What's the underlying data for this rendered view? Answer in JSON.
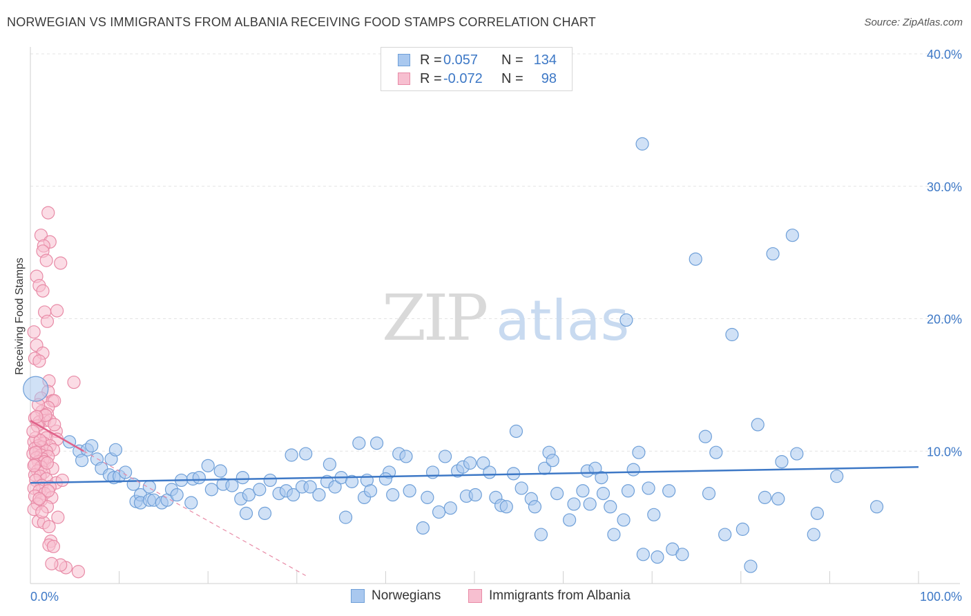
{
  "header": {
    "title": "NORWEGIAN VS IMMIGRANTS FROM ALBANIA RECEIVING FOOD STAMPS CORRELATION CHART",
    "source": "Source: ZipAtlas.com"
  },
  "watermark": {
    "zip": "ZIP",
    "atlas": "atlas"
  },
  "legend": {
    "rows": [
      {
        "r_label": "R =",
        "r_value": "0.057",
        "n_label": "N =",
        "n_value": "134",
        "color": "#a9c8ef",
        "border": "#6e9fd8"
      },
      {
        "r_label": "R =",
        "r_value": "-0.072",
        "n_label": "N =",
        "n_value": "98",
        "color": "#f7bfd0",
        "border": "#e88aa6"
      }
    ]
  },
  "bottom_legend": [
    {
      "label": "Norwegians",
      "color": "#a9c8ef",
      "border": "#6e9fd8"
    },
    {
      "label": "Immigrants from Albania",
      "color": "#f7bfd0",
      "border": "#e88aa6"
    }
  ],
  "chart_data": {
    "type": "scatter",
    "title": "NORWEGIAN VS IMMIGRANTS FROM ALBANIA RECEIVING FOOD STAMPS CORRELATION CHART",
    "ylabel": "Receiving Food Stamps",
    "xlabel": "",
    "xlim": [
      0,
      100
    ],
    "ylim": [
      0,
      40
    ],
    "x_tick_labels": [
      "0.0%",
      "100.0%"
    ],
    "y_ticks": [
      10,
      20,
      30,
      40
    ],
    "y_tick_labels": [
      "10.0%",
      "20.0%",
      "30.0%",
      "40.0%"
    ],
    "grid": true,
    "series": [
      {
        "name": "Norwegians",
        "color": "#6e9fd8",
        "fill": "#a9c8ef",
        "trend": {
          "x": [
            0,
            100
          ],
          "y": [
            7.6,
            8.8
          ]
        },
        "points": [
          [
            0.6,
            14.7
          ],
          [
            4.4,
            10.7
          ],
          [
            5.5,
            10.0
          ],
          [
            6.4,
            10.1
          ],
          [
            6.9,
            10.4
          ],
          [
            7.5,
            9.4
          ],
          [
            5.8,
            9.3
          ],
          [
            9.1,
            9.4
          ],
          [
            9.6,
            10.1
          ],
          [
            8.0,
            8.7
          ],
          [
            8.9,
            8.2
          ],
          [
            9.4,
            8.0
          ],
          [
            10.0,
            8.1
          ],
          [
            10.7,
            8.4
          ],
          [
            11.6,
            7.5
          ],
          [
            11.9,
            6.2
          ],
          [
            12.4,
            6.7
          ],
          [
            13.4,
            7.3
          ],
          [
            12.4,
            6.1
          ],
          [
            13.4,
            6.3
          ],
          [
            13.9,
            6.3
          ],
          [
            14.8,
            6.1
          ],
          [
            15.4,
            6.3
          ],
          [
            15.9,
            7.1
          ],
          [
            16.5,
            6.7
          ],
          [
            17.0,
            7.8
          ],
          [
            18.1,
            6.1
          ],
          [
            18.3,
            7.9
          ],
          [
            19.0,
            8.0
          ],
          [
            20.0,
            8.9
          ],
          [
            20.4,
            7.1
          ],
          [
            21.4,
            8.5
          ],
          [
            21.7,
            7.5
          ],
          [
            22.7,
            7.4
          ],
          [
            23.7,
            6.4
          ],
          [
            24.3,
            5.3
          ],
          [
            24.6,
            6.7
          ],
          [
            25.8,
            7.1
          ],
          [
            26.4,
            5.3
          ],
          [
            27.0,
            7.8
          ],
          [
            28.0,
            6.8
          ],
          [
            28.8,
            7.0
          ],
          [
            29.4,
            9.7
          ],
          [
            29.6,
            6.7
          ],
          [
            30.6,
            7.3
          ],
          [
            31.0,
            9.8
          ],
          [
            31.5,
            7.3
          ],
          [
            32.5,
            6.7
          ],
          [
            33.4,
            7.7
          ],
          [
            33.7,
            9.0
          ],
          [
            34.3,
            7.3
          ],
          [
            35.0,
            8.0
          ],
          [
            35.5,
            5.0
          ],
          [
            36.2,
            7.7
          ],
          [
            37.0,
            10.6
          ],
          [
            37.6,
            6.5
          ],
          [
            37.9,
            7.8
          ],
          [
            38.3,
            7.0
          ],
          [
            39.0,
            10.6
          ],
          [
            40.4,
            8.4
          ],
          [
            40.8,
            6.7
          ],
          [
            41.5,
            9.8
          ],
          [
            42.3,
            9.6
          ],
          [
            42.7,
            7.0
          ],
          [
            44.2,
            4.2
          ],
          [
            44.7,
            6.5
          ],
          [
            45.3,
            8.4
          ],
          [
            46.0,
            5.4
          ],
          [
            46.7,
            9.6
          ],
          [
            47.3,
            5.7
          ],
          [
            48.1,
            8.5
          ],
          [
            48.7,
            8.8
          ],
          [
            49.1,
            6.6
          ],
          [
            49.5,
            9.1
          ],
          [
            50.1,
            6.7
          ],
          [
            51.0,
            9.1
          ],
          [
            51.7,
            8.4
          ],
          [
            52.4,
            6.5
          ],
          [
            53.0,
            5.9
          ],
          [
            53.6,
            5.8
          ],
          [
            54.4,
            8.3
          ],
          [
            54.7,
            11.5
          ],
          [
            55.3,
            7.2
          ],
          [
            56.4,
            6.4
          ],
          [
            56.8,
            5.8
          ],
          [
            57.5,
            3.7
          ],
          [
            57.9,
            8.7
          ],
          [
            58.4,
            9.9
          ],
          [
            58.8,
            9.3
          ],
          [
            59.3,
            6.8
          ],
          [
            60.7,
            4.8
          ],
          [
            61.2,
            6.0
          ],
          [
            62.2,
            7.0
          ],
          [
            62.7,
            8.5
          ],
          [
            63.0,
            6.0
          ],
          [
            63.6,
            8.7
          ],
          [
            64.3,
            8.0
          ],
          [
            64.5,
            6.8
          ],
          [
            65.3,
            5.8
          ],
          [
            65.7,
            3.7
          ],
          [
            66.8,
            4.8
          ],
          [
            67.3,
            7.0
          ],
          [
            67.9,
            8.6
          ],
          [
            68.5,
            9.9
          ],
          [
            68.9,
            33.2
          ],
          [
            67.1,
            19.9
          ],
          [
            69.0,
            2.2
          ],
          [
            69.6,
            7.2
          ],
          [
            70.2,
            5.2
          ],
          [
            70.6,
            2.0
          ],
          [
            71.9,
            7.0
          ],
          [
            72.3,
            2.6
          ],
          [
            73.4,
            2.2
          ],
          [
            74.9,
            24.5
          ],
          [
            76.0,
            11.1
          ],
          [
            76.4,
            6.8
          ],
          [
            77.2,
            9.9
          ],
          [
            78.2,
            3.7
          ],
          [
            79.0,
            18.8
          ],
          [
            80.2,
            4.1
          ],
          [
            81.1,
            1.3
          ],
          [
            81.9,
            12.0
          ],
          [
            82.7,
            6.5
          ],
          [
            83.6,
            24.9
          ],
          [
            84.2,
            6.4
          ],
          [
            85.8,
            26.3
          ],
          [
            86.3,
            9.8
          ],
          [
            88.2,
            3.7
          ],
          [
            88.6,
            5.3
          ],
          [
            90.8,
            8.1
          ],
          [
            95.3,
            5.8
          ],
          [
            84.6,
            9.2
          ],
          [
            40.0,
            7.9
          ],
          [
            23.9,
            8.0
          ]
        ]
      },
      {
        "name": "Immigrants from Albania",
        "color": "#e88aa6",
        "fill": "#f7bfd0",
        "trend": {
          "x": [
            0,
            6
          ],
          "y": [
            12.3,
            10.0
          ]
        },
        "trend_ext": {
          "x": [
            6,
            31
          ],
          "y": [
            10.0,
            0.6
          ]
        },
        "points": [
          [
            2.0,
            28.0
          ],
          [
            1.2,
            26.3
          ],
          [
            2.2,
            25.8
          ],
          [
            1.5,
            25.5
          ],
          [
            1.4,
            25.1
          ],
          [
            3.4,
            24.2
          ],
          [
            1.8,
            24.4
          ],
          [
            0.7,
            23.2
          ],
          [
            1.0,
            22.5
          ],
          [
            1.4,
            22.1
          ],
          [
            1.6,
            20.5
          ],
          [
            3.0,
            20.6
          ],
          [
            1.9,
            19.8
          ],
          [
            0.4,
            19.0
          ],
          [
            0.7,
            18.0
          ],
          [
            1.4,
            17.4
          ],
          [
            0.5,
            17.0
          ],
          [
            1.0,
            16.8
          ],
          [
            4.9,
            15.2
          ],
          [
            2.1,
            15.3
          ],
          [
            2.0,
            14.5
          ],
          [
            1.2,
            14.0
          ],
          [
            2.5,
            13.8
          ],
          [
            2.7,
            13.8
          ],
          [
            2.0,
            13.3
          ],
          [
            1.3,
            13.0
          ],
          [
            1.9,
            12.8
          ],
          [
            0.5,
            12.5
          ],
          [
            1.6,
            12.3
          ],
          [
            1.0,
            12.2
          ],
          [
            2.2,
            12.3
          ],
          [
            0.8,
            11.9
          ],
          [
            2.9,
            11.5
          ],
          [
            1.5,
            11.2
          ],
          [
            0.6,
            11.0
          ],
          [
            1.8,
            11.0
          ],
          [
            3.0,
            10.9
          ],
          [
            0.4,
            10.7
          ],
          [
            1.5,
            10.6
          ],
          [
            2.2,
            10.4
          ],
          [
            0.9,
            10.4
          ],
          [
            1.3,
            10.3
          ],
          [
            0.5,
            10.2
          ],
          [
            2.6,
            10.1
          ],
          [
            1.0,
            10.0
          ],
          [
            1.8,
            10.0
          ],
          [
            0.3,
            9.8
          ],
          [
            1.2,
            9.7
          ],
          [
            2.0,
            9.6
          ],
          [
            0.7,
            9.5
          ],
          [
            1.4,
            9.4
          ],
          [
            0.9,
            9.2
          ],
          [
            1.6,
            9.2
          ],
          [
            0.5,
            9.0
          ],
          [
            1.2,
            8.8
          ],
          [
            2.5,
            8.7
          ],
          [
            0.8,
            8.5
          ],
          [
            1.5,
            8.4
          ],
          [
            0.5,
            8.2
          ],
          [
            1.1,
            8.1
          ],
          [
            1.8,
            7.9
          ],
          [
            0.6,
            7.8
          ],
          [
            2.9,
            7.6
          ],
          [
            1.3,
            7.4
          ],
          [
            0.4,
            7.2
          ],
          [
            2.2,
            7.3
          ],
          [
            1.0,
            7.0
          ],
          [
            1.6,
            6.8
          ],
          [
            0.5,
            6.6
          ],
          [
            2.4,
            6.5
          ],
          [
            1.2,
            6.3
          ],
          [
            0.8,
            6.0
          ],
          [
            1.9,
            5.8
          ],
          [
            0.4,
            5.6
          ],
          [
            3.1,
            5.0
          ],
          [
            0.9,
            4.7
          ],
          [
            1.5,
            4.6
          ],
          [
            2.1,
            4.3
          ],
          [
            2.3,
            3.2
          ],
          [
            2.1,
            2.9
          ],
          [
            2.6,
            2.8
          ],
          [
            4.0,
            1.2
          ],
          [
            3.4,
            1.4
          ],
          [
            5.4,
            0.9
          ],
          [
            2.4,
            1.5
          ],
          [
            0.6,
            9.9
          ],
          [
            1.1,
            10.8
          ],
          [
            0.3,
            11.5
          ],
          [
            2.7,
            12.0
          ],
          [
            0.9,
            13.5
          ],
          [
            1.7,
            12.7
          ],
          [
            0.4,
            8.9
          ],
          [
            2.0,
            7.0
          ],
          [
            1.3,
            5.4
          ],
          [
            0.7,
            12.6
          ],
          [
            1.9,
            9.1
          ],
          [
            3.6,
            7.8
          ],
          [
            1.0,
            6.4
          ]
        ]
      }
    ]
  }
}
